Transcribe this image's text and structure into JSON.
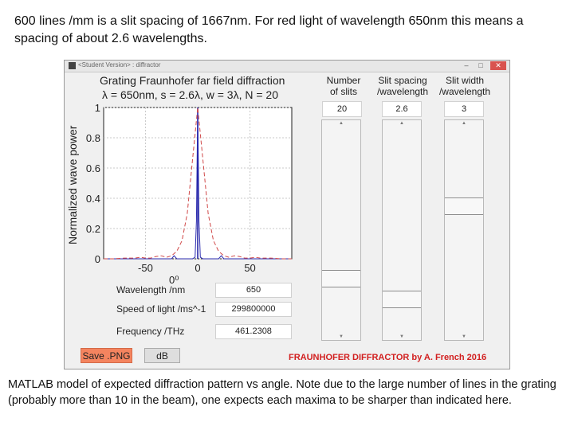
{
  "caption_top": "600 lines /mm is a slit spacing of 1667nm. For red light of wavelength 650nm this means a spacing of about 2.6 wavelengths.",
  "caption_bottom": "MATLAB model of expected diffraction pattern vs angle. Note due to the large number of lines in the grating (probably more than 10 in the beam), one expects each maxima to be sharper than indicated here.",
  "window": {
    "title": "<Student Version> : diffractor",
    "controls": [
      "–",
      "□",
      "✕"
    ]
  },
  "plot": {
    "title_line1": "Grating Fraunhofer far field diffraction",
    "title_line2": "λ = 650nm,  s = 2.6λ,  w = 3λ,  N = 20",
    "ylabel": "Normalized wave power",
    "angle_readout": "0⁰"
  },
  "chart_data": {
    "type": "line",
    "title": "Grating Fraunhofer far field diffraction",
    "subtitle": "λ = 650nm,  s = 2.6λ,  w = 3λ,  N = 20",
    "xlabel": "",
    "ylabel": "Normalized wave power",
    "xlim": [
      -90,
      90
    ],
    "ylim": [
      0,
      1
    ],
    "xticks": [
      -50,
      0,
      50
    ],
    "xtick_labels": [
      "-50",
      "0",
      "50"
    ],
    "yticks": [
      0,
      0.2,
      0.4,
      0.6,
      0.8,
      1
    ],
    "ytick_labels": [
      "0",
      "0.2",
      "0.4",
      "0.6",
      "0.8",
      "1"
    ],
    "grid": true,
    "marker_x": 0,
    "series": [
      {
        "style": "solid",
        "color": "#2b2bb0",
        "x": [
          -90,
          -40,
          -25,
          -22.6,
          -20,
          -15,
          -5,
          -2.5,
          -1.2,
          0,
          1.2,
          2.5,
          5,
          15,
          20,
          22.6,
          25,
          40,
          90
        ],
        "y": [
          0,
          0,
          0,
          0.02,
          0,
          0,
          0,
          0.01,
          0.25,
          1.0,
          0.25,
          0.01,
          0,
          0,
          0,
          0.02,
          0,
          0,
          0
        ]
      },
      {
        "style": "dashed",
        "color": "#d04848",
        "x": [
          -90,
          -80,
          -70,
          -60,
          -55,
          -50,
          -45,
          -40,
          -35,
          -30,
          -25,
          -20,
          -15,
          -10,
          -5,
          0,
          5,
          10,
          15,
          20,
          25,
          30,
          35,
          40,
          45,
          50,
          55,
          60,
          70,
          80,
          90
        ],
        "y": [
          0,
          0,
          0.005,
          0.005,
          0.01,
          0.005,
          0.005,
          0.015,
          0.02,
          0.01,
          0.02,
          0.05,
          0.12,
          0.3,
          0.65,
          1.0,
          0.65,
          0.3,
          0.12,
          0.05,
          0.02,
          0.01,
          0.02,
          0.015,
          0.005,
          0.005,
          0.01,
          0.005,
          0.005,
          0,
          0
        ]
      }
    ]
  },
  "controls": {
    "columns": [
      {
        "head_line1": "Number",
        "head_line2": "of slits",
        "value": "20",
        "thumb_fraction": 0.75
      },
      {
        "head_line1": "Slit spacing",
        "head_line2": "/wavelength",
        "value": "2.6",
        "thumb_fraction": 0.86
      },
      {
        "head_line1": "Slit width",
        "head_line2": "/wavelength",
        "value": "3",
        "thumb_fraction": 0.37
      }
    ],
    "fields": [
      {
        "label": "Wavelength /nm",
        "value": "650"
      },
      {
        "label": "Speed of light /ms^-1",
        "value": "299800000"
      },
      {
        "label": "Frequency /THz",
        "value": "461.2308"
      }
    ],
    "save_button": "Save .PNG",
    "db_button": "dB",
    "credit": "FRAUNHOFER DIFFRACTOR by A. French 2016"
  },
  "colors": {
    "save_button": "#f4845f",
    "credit": "#d21f1f",
    "solid_series": "#2b2bb0",
    "dashed_series": "#d04848"
  }
}
